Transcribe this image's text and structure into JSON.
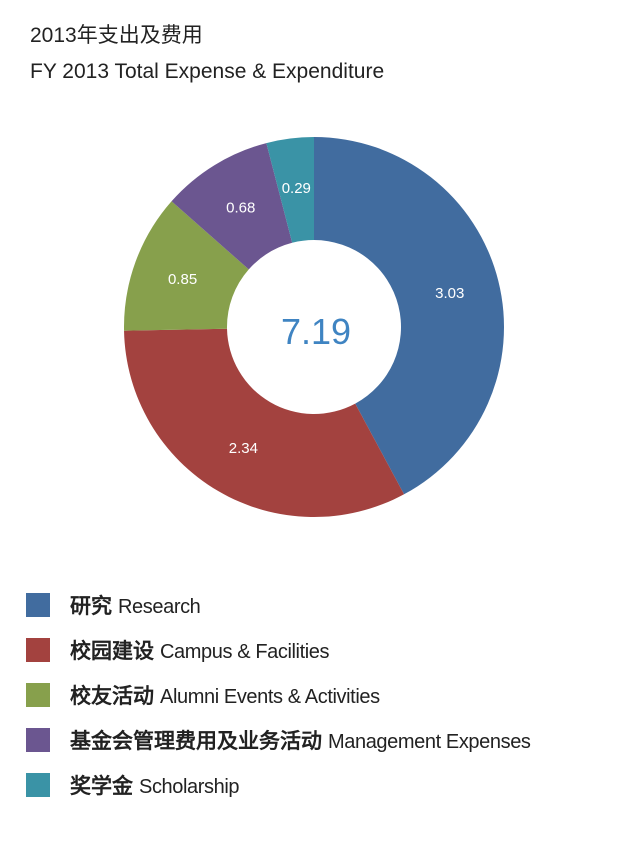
{
  "title": "2013年支出及费用",
  "subtitle": "FY 2013 Total Expense & Expenditure",
  "chart_data": {
    "type": "pie",
    "style": "donut",
    "title": "2013年支出及费用",
    "subtitle": "FY 2013 Total Expense & Expenditure",
    "center_label": "7.19",
    "legend_position": "bottom-left",
    "slices": [
      {
        "label_zh": "研究",
        "label_en": "Research",
        "value": 3.03,
        "value_label": "3.03",
        "color": "#416c9f"
      },
      {
        "label_zh": "校园建设",
        "label_en": "Campus & Facilities",
        "value": 2.34,
        "value_label": "2.34",
        "color": "#a3423f"
      },
      {
        "label_zh": "校友活动",
        "label_en": "Alumni Events & Activities",
        "value": 0.85,
        "value_label": "0.85",
        "color": "#87a04c"
      },
      {
        "label_zh": "基金会管理费用及业务活动",
        "label_en": "Management Expenses",
        "value": 0.68,
        "value_label": "0.68",
        "color": "#6b5690"
      },
      {
        "label_zh": "奖学金",
        "label_en": "Scholarship",
        "value": 0.29,
        "value_label": "0.29",
        "color": "#3a93a6"
      }
    ]
  }
}
